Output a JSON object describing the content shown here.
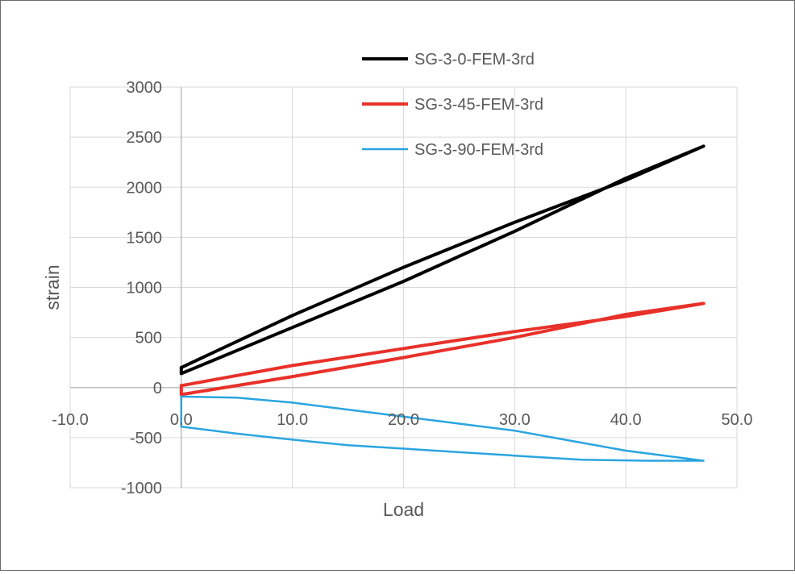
{
  "chart_data": {
    "type": "line",
    "title": "",
    "xlabel": "Load",
    "ylabel": "strain",
    "xlim": [
      -10,
      50
    ],
    "ylim": [
      -1000,
      3000
    ],
    "x_ticks": [
      "-10.0",
      "0.0",
      "10.0",
      "20.0",
      "30.0",
      "40.0",
      "50.0"
    ],
    "y_ticks": [
      "3000",
      "2500",
      "2000",
      "1500",
      "1000",
      "500",
      "0",
      "-500",
      "-1000"
    ],
    "grid": true,
    "legend_position": "top-center",
    "series": [
      {
        "name": "SG-3-0-FEM-3rd",
        "color": "#000000",
        "points": [
          [
            0,
            200
          ],
          [
            10,
            720
          ],
          [
            20,
            1200
          ],
          [
            30,
            1650
          ],
          [
            40,
            2070
          ],
          [
            47,
            2410
          ],
          [
            40,
            2090
          ],
          [
            30,
            1560
          ],
          [
            20,
            1060
          ],
          [
            10,
            600
          ],
          [
            0,
            140
          ],
          [
            0,
            200
          ]
        ]
      },
      {
        "name": "SG-3-45-FEM-3rd",
        "color": "#e8312a",
        "points": [
          [
            0,
            20
          ],
          [
            10,
            220
          ],
          [
            20,
            390
          ],
          [
            30,
            560
          ],
          [
            40,
            710
          ],
          [
            47,
            840
          ],
          [
            40,
            730
          ],
          [
            30,
            500
          ],
          [
            20,
            300
          ],
          [
            10,
            110
          ],
          [
            0,
            -70
          ],
          [
            0,
            20
          ]
        ]
      },
      {
        "name": "SG-3-90-FEM-3rd",
        "color": "#2aa5e0",
        "points": [
          [
            0,
            -90
          ],
          [
            5,
            -100
          ],
          [
            10,
            -150
          ],
          [
            15,
            -220
          ],
          [
            20,
            -290
          ],
          [
            25,
            -360
          ],
          [
            30,
            -430
          ],
          [
            35,
            -530
          ],
          [
            40,
            -630
          ],
          [
            47,
            -730
          ],
          [
            42,
            -730
          ],
          [
            36,
            -720
          ],
          [
            30,
            -680
          ],
          [
            25,
            -645
          ],
          [
            20,
            -610
          ],
          [
            15,
            -575
          ],
          [
            10,
            -520
          ],
          [
            5,
            -460
          ],
          [
            0,
            -390
          ],
          [
            0,
            -90
          ]
        ]
      }
    ]
  }
}
